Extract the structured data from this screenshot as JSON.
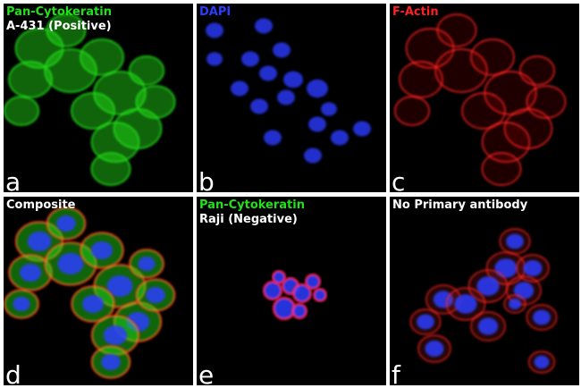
{
  "colors": {
    "keratin": "#22e01a",
    "dapi": "#2a3cff",
    "actin": "#ff2020",
    "white": "#ffffff"
  },
  "panels": [
    {
      "letter": "a",
      "title": "Pan-Cytokeratin",
      "subtitle": "A-431 (Positive)",
      "title_color": "#22e01a",
      "channel": "keratin"
    },
    {
      "letter": "b",
      "title": "DAPI",
      "subtitle": "",
      "title_color": "#2a3cff",
      "channel": "dapi"
    },
    {
      "letter": "c",
      "title": "F-Actin",
      "subtitle": "",
      "title_color": "#ff2020",
      "channel": "actin"
    },
    {
      "letter": "d",
      "title": "Composite",
      "subtitle": "",
      "title_color": "#ffffff",
      "channel": "composite"
    },
    {
      "letter": "e",
      "title": "Pan-Cytokeratin",
      "subtitle": "Raji (Negative)",
      "title_color": "#22e01a",
      "channel": "raji"
    },
    {
      "letter": "f",
      "title": "No Primary antibody",
      "subtitle": "",
      "title_color": "#ffffff",
      "channel": "noprimary"
    }
  ]
}
